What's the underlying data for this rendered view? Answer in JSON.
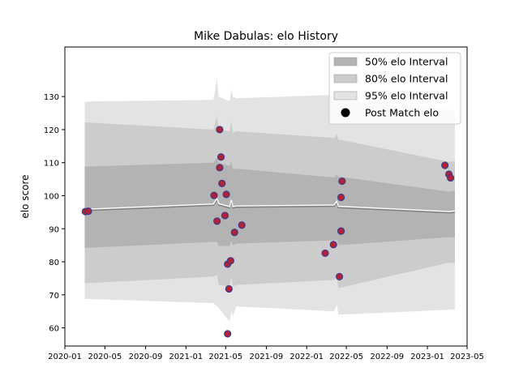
{
  "chart_data": {
    "type": "line",
    "title": "Mike Dabulas: elo History",
    "xlabel": "",
    "ylabel": "elo score",
    "xlim": [
      "2020-01-01",
      "2023-05-01"
    ],
    "ylim": [
      54.5,
      145
    ],
    "x_ticks": [
      {
        "date": "2020-01-01",
        "label": "2020-01"
      },
      {
        "date": "2020-05-01",
        "label": "2020-05"
      },
      {
        "date": "2020-09-01",
        "label": "2020-09"
      },
      {
        "date": "2021-01-01",
        "label": "2021-01"
      },
      {
        "date": "2021-05-01",
        "label": "2021-05"
      },
      {
        "date": "2021-09-01",
        "label": "2021-09"
      },
      {
        "date": "2022-01-01",
        "label": "2022-01"
      },
      {
        "date": "2022-05-01",
        "label": "2022-05"
      },
      {
        "date": "2022-09-01",
        "label": "2022-09"
      },
      {
        "date": "2023-01-01",
        "label": "2023-01"
      },
      {
        "date": "2023-05-01",
        "label": "2023-05"
      }
    ],
    "y_ticks": [
      60,
      70,
      80,
      90,
      100,
      110,
      120,
      130
    ],
    "grid": false,
    "legend_position": "top-right",
    "legend": [
      {
        "label": "50% elo Interval",
        "kind": "band"
      },
      {
        "label": "80% elo Interval",
        "kind": "band"
      },
      {
        "label": "95% elo Interval",
        "kind": "band"
      },
      {
        "label": "Post Match elo",
        "kind": "marker"
      }
    ],
    "colors": {
      "band50": "#b3b3b3",
      "band80": "#cccccc",
      "band95": "#e3e3e3",
      "mean_line": "#808080",
      "mean_highlight": "#ffffff",
      "marker_fill": "#b22234",
      "marker_edge": "#3b3b8c"
    },
    "series": [
      {
        "kind": "mean",
        "x": [
          "2020-03-01",
          "2021-03-25",
          "2021-04-05",
          "2021-04-10",
          "2021-05-13",
          "2021-05-18",
          "2021-05-23",
          "2021-06-02",
          "2022-03-25",
          "2022-04-02",
          "2022-04-07",
          "2023-03-10",
          "2023-03-25"
        ],
        "y": [
          95.5,
          97.1,
          98.8,
          97.2,
          96.3,
          98.3,
          96.3,
          96.5,
          96.8,
          97.9,
          96.4,
          94.8,
          95.0
        ]
      },
      {
        "kind": "band",
        "level": "50%",
        "x": [
          "2020-03-01",
          "2021-03-25",
          "2021-04-05",
          "2021-04-10",
          "2021-05-13",
          "2021-05-18",
          "2021-05-23",
          "2021-06-02",
          "2022-03-25",
          "2022-04-02",
          "2022-04-07",
          "2023-03-10",
          "2023-03-25"
        ],
        "lower": [
          84.2,
          86.0,
          86.0,
          84.8,
          84.8,
          86.2,
          85.0,
          85.5,
          86.5,
          86.8,
          85.0,
          87.5,
          87.3
        ],
        "upper": [
          108.8,
          110.0,
          111.5,
          110.0,
          109.0,
          110.5,
          108.0,
          108.2,
          105.5,
          106.5,
          105.8,
          101.2,
          101.5
        ]
      },
      {
        "kind": "band",
        "level": "80%",
        "x": [
          "2020-03-01",
          "2021-03-25",
          "2021-04-05",
          "2021-04-10",
          "2021-05-13",
          "2021-05-18",
          "2021-05-23",
          "2021-06-02",
          "2022-03-25",
          "2022-04-02",
          "2022-04-07",
          "2023-03-10",
          "2023-03-25"
        ],
        "lower": [
          73.5,
          75.5,
          76.0,
          73.0,
          72.5,
          75.5,
          72.5,
          73.0,
          74.5,
          75.5,
          72.0,
          79.8,
          79.5
        ],
        "upper": [
          122.2,
          120.0,
          124.0,
          120.0,
          119.5,
          122.5,
          119.0,
          119.5,
          117.5,
          118.5,
          117.0,
          110.2,
          110.5
        ]
      },
      {
        "kind": "band",
        "level": "95%",
        "x": [
          "2020-03-01",
          "2021-03-25",
          "2021-04-05",
          "2021-04-10",
          "2021-05-13",
          "2021-05-18",
          "2021-05-23",
          "2021-06-02",
          "2022-03-25",
          "2022-04-02",
          "2022-04-07",
          "2023-03-10",
          "2023-03-25"
        ],
        "lower": [
          68.8,
          67.5,
          66.5,
          66.0,
          62.0,
          65.0,
          63.5,
          66.5,
          65.0,
          67.0,
          64.0,
          65.5,
          65.5
        ],
        "upper": [
          128.5,
          129.0,
          135.5,
          130.0,
          128.5,
          132.0,
          130.0,
          129.5,
          130.5,
          131.0,
          129.0,
          126.0,
          126.0
        ]
      },
      {
        "kind": "points",
        "name": "Post Match elo",
        "points": [
          {
            "x": "2020-03-03",
            "y": 95.2
          },
          {
            "x": "2020-03-12",
            "y": 95.3
          },
          {
            "x": "2021-03-27",
            "y": 100.1
          },
          {
            "x": "2021-04-05",
            "y": 92.3
          },
          {
            "x": "2021-04-13",
            "y": 108.5
          },
          {
            "x": "2021-04-13",
            "y": 120.0
          },
          {
            "x": "2021-04-17",
            "y": 111.7
          },
          {
            "x": "2021-04-20",
            "y": 103.7
          },
          {
            "x": "2021-04-29",
            "y": 94.0
          },
          {
            "x": "2021-05-03",
            "y": 100.4
          },
          {
            "x": "2021-05-07",
            "y": 79.3
          },
          {
            "x": "2021-05-07",
            "y": 58.2
          },
          {
            "x": "2021-05-11",
            "y": 71.8
          },
          {
            "x": "2021-05-16",
            "y": 80.3
          },
          {
            "x": "2021-05-28",
            "y": 88.9
          },
          {
            "x": "2021-06-19",
            "y": 91.1
          },
          {
            "x": "2022-02-26",
            "y": 82.6
          },
          {
            "x": "2022-03-23",
            "y": 85.2
          },
          {
            "x": "2022-04-10",
            "y": 75.5
          },
          {
            "x": "2022-04-15",
            "y": 99.5
          },
          {
            "x": "2022-04-15",
            "y": 89.3
          },
          {
            "x": "2022-04-18",
            "y": 104.4
          },
          {
            "x": "2023-02-23",
            "y": 109.2
          },
          {
            "x": "2023-03-07",
            "y": 106.5
          },
          {
            "x": "2023-03-12",
            "y": 105.4
          }
        ]
      }
    ]
  }
}
